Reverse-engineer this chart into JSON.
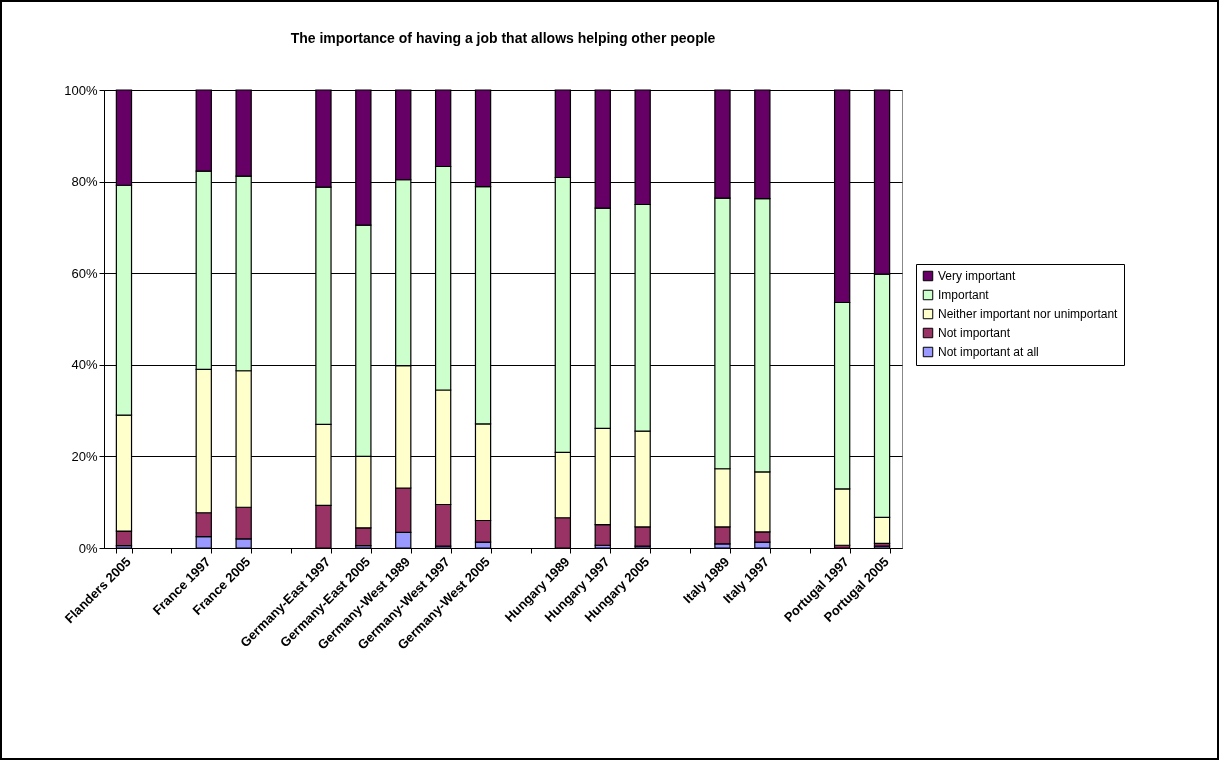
{
  "chart_data": {
    "type": "bar",
    "stacked": true,
    "title": "The importance of having a job that allows helping other people",
    "categories": [
      "Flanders 2005",
      null,
      "France 1997",
      "France 2005",
      null,
      "Germany-East 1997",
      "Germany-East 2005",
      "Germany-West 1989",
      "Germany-West 1997",
      "Germany-West 2005",
      null,
      "Hungary 1989",
      "Hungary 1997",
      "Hungary 2005",
      null,
      "Italy 1989",
      "Italy 1997",
      null,
      "Portugal 1997",
      "Portugal 2005"
    ],
    "series": [
      {
        "name": "Not important at all",
        "color": "#9999ff",
        "values": [
          0.5,
          null,
          2.5,
          2.0,
          null,
          null,
          0.5,
          3.4,
          0.4,
          1.3,
          null,
          null,
          0.6,
          0.4,
          null,
          0.9,
          1.3,
          null,
          null,
          0.4
        ]
      },
      {
        "name": "Not important",
        "color": "#993366",
        "values": [
          3.2,
          null,
          5.2,
          6.9,
          null,
          9.3,
          3.9,
          9.7,
          9.1,
          4.7,
          null,
          6.6,
          4.5,
          4.2,
          null,
          3.7,
          2.2,
          null,
          0.6,
          0.6
        ]
      },
      {
        "name": "Neither important nor unimportant",
        "color": "#ffffcc",
        "values": [
          25.3,
          null,
          31.3,
          29.8,
          null,
          17.7,
          15.6,
          26.7,
          25.0,
          21.1,
          null,
          14.3,
          21.0,
          20.9,
          null,
          12.7,
          13.1,
          null,
          12.3,
          5.7
        ]
      },
      {
        "name": "Important",
        "color": "#ccffcc",
        "values": [
          50.2,
          null,
          43.3,
          42.5,
          null,
          51.8,
          50.5,
          40.6,
          48.8,
          51.8,
          null,
          60.0,
          48.1,
          49.5,
          null,
          59.1,
          59.7,
          null,
          40.7,
          53.1
        ]
      },
      {
        "name": "Very important",
        "color": "#660066",
        "values": [
          20.8,
          null,
          17.7,
          18.8,
          null,
          21.2,
          29.5,
          19.6,
          16.7,
          21.1,
          null,
          19.1,
          25.8,
          25.0,
          null,
          23.6,
          23.7,
          null,
          46.4,
          40.2
        ]
      }
    ],
    "ylim": [
      0,
      100
    ],
    "yticks": [
      {
        "value": 0,
        "label": "0%"
      },
      {
        "value": 20,
        "label": "20%"
      },
      {
        "value": 40,
        "label": "40%"
      },
      {
        "value": 60,
        "label": "60%"
      },
      {
        "value": 80,
        "label": "80%"
      },
      {
        "value": 100,
        "label": "100%"
      }
    ],
    "grid": "y",
    "legend": "right"
  }
}
